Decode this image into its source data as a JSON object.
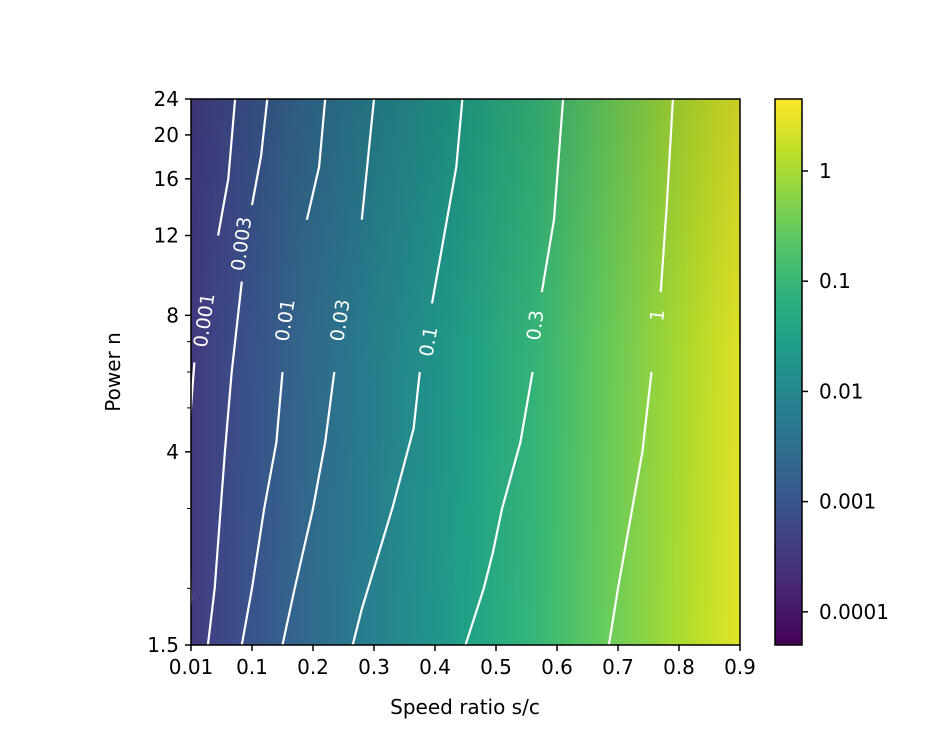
{
  "chart_data": {
    "type": "heatmap",
    "title": "",
    "xlabel": "Speed ratio s/c",
    "ylabel": "Power n",
    "x_ticks": [
      "0.01",
      "0.1",
      "0.2",
      "0.3",
      "0.4",
      "0.5",
      "0.6",
      "0.7",
      "0.8",
      "0.9"
    ],
    "x_tick_values": [
      0.01,
      0.1,
      0.2,
      0.3,
      0.4,
      0.5,
      0.6,
      0.7,
      0.8,
      0.9
    ],
    "xlim": [
      0.01,
      0.9
    ],
    "y_scale": "log",
    "y_ticks": [
      "1.5",
      "4",
      "8",
      "12",
      "16",
      "20",
      "24"
    ],
    "y_tick_values": [
      1.5,
      4,
      8,
      12,
      16,
      20,
      24
    ],
    "y_minor_ticks": [
      2,
      3,
      5,
      6,
      7
    ],
    "ylim": [
      1.5,
      24
    ],
    "colormap": "viridis",
    "color_scale": "log",
    "colorbar_ticks": [
      "0.0001",
      "0.001",
      "0.01",
      "0.1",
      "1"
    ],
    "colorbar_tick_values": [
      0.0001,
      0.001,
      0.01,
      0.1,
      1
    ],
    "colorbar_range": [
      5e-05,
      4.5
    ],
    "contour_color": "#ffffff",
    "contours": [
      {
        "level": "0.001",
        "label_at": {
          "x": 0.03,
          "y": 7.8
        },
        "points": [
          [
            0.005,
            1.5
          ],
          [
            0.01,
            1.9
          ],
          [
            0.005,
            4.0
          ],
          [
            0.015,
            6.3
          ],
          [
            0.03,
            9.0
          ],
          [
            0.05,
            12.0
          ],
          [
            0.065,
            16.0
          ],
          [
            0.075,
            24.0
          ]
        ]
      },
      {
        "level": "0.003",
        "label_at": {
          "x": 0.085,
          "y": 11.5
        },
        "points": [
          [
            0.035,
            1.5
          ],
          [
            0.045,
            2.0
          ],
          [
            0.06,
            4.0
          ],
          [
            0.07,
            6.0
          ],
          [
            0.085,
            9.5
          ],
          [
            0.1,
            14.0
          ],
          [
            0.115,
            18.0
          ],
          [
            0.125,
            24.0
          ]
        ]
      },
      {
        "level": "0.01",
        "label_at": {
          "x": 0.155,
          "y": 7.8
        },
        "points": [
          [
            0.085,
            1.5
          ],
          [
            0.1,
            2.0
          ],
          [
            0.12,
            3.0
          ],
          [
            0.14,
            4.2
          ],
          [
            0.15,
            6.0
          ],
          [
            0.17,
            9.0
          ],
          [
            0.19,
            13.0
          ],
          [
            0.21,
            17.0
          ],
          [
            0.22,
            24.0
          ]
        ]
      },
      {
        "level": "0.03",
        "label_at": {
          "x": 0.245,
          "y": 7.8
        },
        "points": [
          [
            0.15,
            1.5
          ],
          [
            0.17,
            2.0
          ],
          [
            0.2,
            3.0
          ],
          [
            0.22,
            4.2
          ],
          [
            0.235,
            6.0
          ],
          [
            0.255,
            9.0
          ],
          [
            0.28,
            13.0
          ],
          [
            0.3,
            24.0
          ]
        ]
      },
      {
        "level": "0.1",
        "label_at": {
          "x": 0.39,
          "y": 7.0
        },
        "points": [
          [
            0.265,
            1.5
          ],
          [
            0.28,
            1.8
          ],
          [
            0.33,
            3.0
          ],
          [
            0.365,
            4.5
          ],
          [
            0.375,
            6.0
          ],
          [
            0.395,
            8.5
          ],
          [
            0.41,
            11.0
          ],
          [
            0.435,
            17.0
          ],
          [
            0.445,
            24.0
          ]
        ]
      },
      {
        "level": "0.3",
        "label_at": {
          "x": 0.565,
          "y": 7.6
        },
        "points": [
          [
            0.45,
            1.5
          ],
          [
            0.48,
            2.0
          ],
          [
            0.495,
            2.4
          ],
          [
            0.51,
            3.0
          ],
          [
            0.54,
            4.2
          ],
          [
            0.56,
            6.0
          ],
          [
            0.575,
            9.0
          ],
          [
            0.595,
            13.0
          ],
          [
            0.61,
            24.0
          ]
        ]
      },
      {
        "level": "1",
        "label_at": {
          "x": 0.765,
          "y": 8.0
        },
        "points": [
          [
            0.685,
            1.5
          ],
          [
            0.7,
            2.0
          ],
          [
            0.715,
            2.6
          ],
          [
            0.74,
            4.0
          ],
          [
            0.755,
            6.0
          ],
          [
            0.77,
            9.0
          ],
          [
            0.78,
            14.0
          ],
          [
            0.79,
            24.0
          ]
        ]
      }
    ]
  }
}
